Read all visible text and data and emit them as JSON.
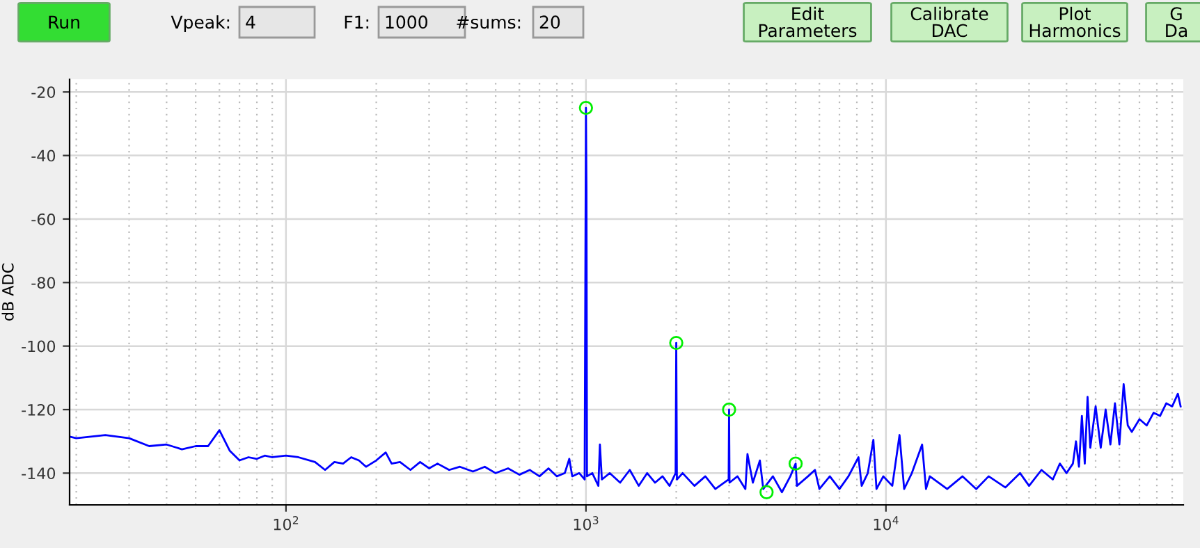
{
  "chart_data": {
    "type": "line",
    "ylabel": "dB ADC",
    "xlim": [
      19,
      98000
    ],
    "ylim": [
      -150,
      -16
    ],
    "log": "x",
    "xticks": [
      {
        "value": 100,
        "label": "10$^{2}$"
      },
      {
        "value": 1000,
        "label": "10$^{3}$"
      },
      {
        "value": 10000,
        "label": "10$^{4}$"
      }
    ],
    "yticks": [
      -20,
      -40,
      -60,
      -80,
      -100,
      -120,
      -140
    ],
    "grid": true,
    "annotations": [
      "Run",
      "Vpeak:",
      "4",
      "F1:",
      "1000",
      "#sums:",
      "20",
      "Edit\nParameters",
      "Calibrate\nDAC",
      "Plot\nHarmonics",
      "G\nDa"
    ],
    "series": [
      {
        "color": "#0000ff",
        "marker": "none",
        "x": [
          19,
          20,
          25,
          30,
          35,
          40,
          45,
          50,
          55,
          60,
          65,
          70,
          75,
          80,
          85,
          90,
          100,
          110,
          125,
          135,
          145,
          155,
          165,
          175,
          185,
          200,
          215,
          225,
          240,
          260,
          280,
          300,
          320,
          350,
          380,
          420,
          460,
          500,
          550,
          600,
          650,
          700,
          750,
          800,
          850,
          880,
          900,
          950,
          990,
          1000,
          1004,
          1008,
          1050,
          1100,
          1113,
          1130,
          1200,
          1300,
          1400,
          1500,
          1600,
          1700,
          1800,
          1900,
          1990,
          2000,
          2005,
          2010,
          2100,
          2300,
          2500,
          2700,
          2990,
          3000,
          3005,
          3010,
          3200,
          3400,
          3455,
          3600,
          3800,
          3900,
          4200,
          4500,
          4800,
          5000,
          5050,
          5500,
          5800,
          6000,
          6500,
          7000,
          7500,
          8100,
          8300,
          8700,
          9080,
          9300,
          9800,
          10500,
          11100,
          11500,
          12200,
          13200,
          13600,
          14000,
          16000,
          18000,
          20000,
          22000,
          25000,
          28000,
          30000,
          33000,
          36000,
          38000,
          40000,
          42000,
          43000,
          44000,
          45000,
          46000,
          47000,
          48000,
          50000,
          52000,
          54000,
          56000,
          58000,
          60000,
          62000,
          64000,
          66000,
          70000,
          74000,
          78000,
          82000,
          86000,
          90000,
          94000,
          96000
        ],
        "values": [
          -128.5,
          -129,
          -128,
          -129,
          -131.5,
          -131,
          -132.5,
          -131.5,
          -131.5,
          -126.5,
          -133,
          -136,
          -135,
          -135.5,
          -134.5,
          -135,
          -134.5,
          -135,
          -136.5,
          -139,
          -136.5,
          -137,
          -135,
          -136,
          -138,
          -136,
          -133.5,
          -137,
          -136.5,
          -139,
          -136.5,
          -138.5,
          -137,
          -139,
          -138,
          -139.5,
          -138,
          -140,
          -138.5,
          -140.5,
          -139,
          -141,
          -138.5,
          -141,
          -140,
          -135.5,
          -141,
          -140,
          -142,
          -25,
          -51,
          -141,
          -140,
          -144,
          -131,
          -142,
          -140,
          -143,
          -139,
          -144,
          -140,
          -143,
          -141,
          -144,
          -140,
          -99,
          -120,
          -142,
          -140,
          -144,
          -141,
          -145,
          -142,
          -120,
          -131,
          -143,
          -141,
          -145,
          -134,
          -143,
          -136,
          -145,
          -141,
          -146,
          -141,
          -137,
          -144,
          -141,
          -139,
          -145,
          -141,
          -145,
          -141,
          -135,
          -144,
          -140,
          -129.5,
          -145,
          -141,
          -144,
          -128,
          -145,
          -140,
          -131,
          -145,
          -141,
          -145,
          -141,
          -145,
          -141,
          -144.5,
          -140,
          -144,
          -139,
          -142,
          -137,
          -140,
          -137,
          -130,
          -138,
          -122,
          -137,
          -116,
          -132,
          -119,
          -132,
          -120,
          -131,
          -118,
          -131,
          -112,
          -125,
          -127,
          -123,
          -125,
          -121,
          -122,
          -118,
          -119,
          -115,
          -119
        ]
      },
      {
        "type": "scatter",
        "color": "#00ee00",
        "marker": "circle",
        "x": [
          1000,
          2000,
          3000,
          4000,
          5000
        ],
        "values": [
          -25,
          -99,
          -120,
          -146,
          -137
        ]
      }
    ]
  }
}
